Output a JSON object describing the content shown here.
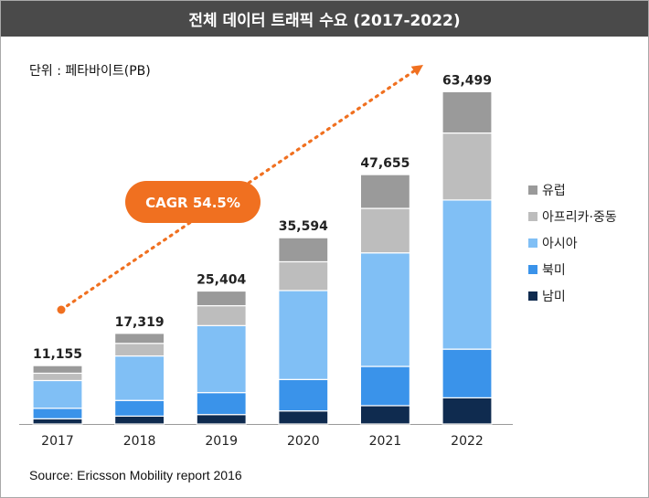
{
  "header": {
    "title": "전체 데이터 트래픽 수요 (2017-2022)"
  },
  "unit": "단위 : 페타바이트(PB)",
  "source": "Source: Ericsson Mobility report 2016",
  "cagr": {
    "label": "CAGR 54.5%",
    "color": "#f07020"
  },
  "chart_data": {
    "type": "bar",
    "stacked": true,
    "title": "전체 데이터 트래픽 수요 (2017-2022)",
    "ylabel": "페타바이트(PB)",
    "ylim": [
      0,
      66000
    ],
    "categories": [
      "2017",
      "2018",
      "2019",
      "2020",
      "2021",
      "2022"
    ],
    "totals": [
      11155,
      17319,
      25404,
      35594,
      47655,
      63499
    ],
    "total_labels": [
      "11,155",
      "17,319",
      "25,404",
      "35,594",
      "47,655",
      "63,499"
    ],
    "series": [
      {
        "name": "남미",
        "color": "#0f2b4f",
        "values": [
          1000,
          1500,
          1800,
          2500,
          3500,
          5000
        ]
      },
      {
        "name": "북미",
        "color": "#3a93ea",
        "values": [
          2000,
          3000,
          4200,
          6000,
          7500,
          9300
        ]
      },
      {
        "name": "아시아",
        "color": "#80bff5",
        "values": [
          5300,
          8500,
          12800,
          17000,
          21700,
          28500
        ]
      },
      {
        "name": "아프리카·중동",
        "color": "#bdbdbd",
        "values": [
          1400,
          2400,
          3800,
          5500,
          8500,
          12800
        ]
      },
      {
        "name": "유럽",
        "color": "#9a9a9a",
        "values": [
          1455,
          1919,
          2804,
          4594,
          6455,
          7899
        ]
      }
    ],
    "legend_order": [
      "유럽",
      "아프리카·중동",
      "아시아",
      "북미",
      "남미"
    ],
    "annotation": "CAGR 54.5%"
  }
}
